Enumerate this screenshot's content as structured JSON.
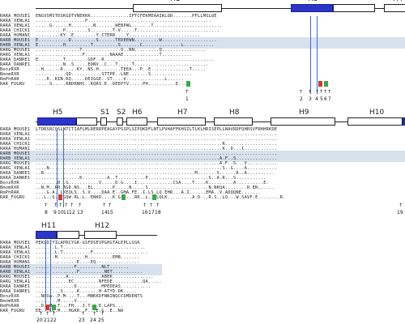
{
  "panels": [
    {
      "helices": [
        "H1",
        "H3",
        "H4"
      ],
      "rows": [
        {
          "name": "RARA_MOUSE1",
          "seq": "ENGVSMSTDSKGDTVNEKKK..............IFTCFEKMEAAIKLQD.......PFLLMSLQE"
        },
        {
          "name": "RARA_XENLA1",
          "seq": "..................P............................................."
        },
        {
          "name": "RARA_XENLA1",
          "seq": ".....G......H........N.......WEBPWL.......T........................."
        },
        {
          "name": "RARA_CHICK1",
          "seq": "..........P........S........T.V.....T.............................."
        },
        {
          "name": "RARA_HUMAN1",
          "seq": ".........KY..E........Y.CTERR....Y.........................."
        },
        {
          "name": "RARB_MOUSE1",
          "seq": "E...........D.........S......TEDEEWN.........W...................."
        },
        {
          "name": "RARB_XENLA1",
          "seq": "E.........H.........T.........S.......C..............L..........."
        },
        {
          "name": "RARG_MOUSE1",
          "seq": "................T..............V..NN.........Q................"
        },
        {
          "name": "RARG_XENLA1",
          "seq": ".................F.........NAAAE.............T..........."
        },
        {
          "name": "RARA_DANRE1",
          "seq": "E.........T........GDF..R........................................"
        },
        {
          "name": "RARA_DANRE1",
          "seq": "..........N..S.....EDNV..C...T.....T..........................."
        },
        {
          "name": "BenzRXR",
          "seq": "..H......R.....KY..NS.H........TEEA...P..E..............T....."
        },
        {
          "name": "BmomRXR",
          "seq": "...........QD...........STTPE..LNE.......S..............."
        },
        {
          "name": "RmPhRAR",
          "seq": "....R..KIN.RQ.....DEIGGE..ST....V..............L......"
        },
        {
          "name": "RAR_FUGRU",
          "seq": ".....S.....RBDRNHC..KQRS.E..DEEPTV.....PH..........E...."
        }
      ],
      "arrow_numbers": [
        "1",
        "2",
        "3",
        "4",
        "5",
        "6",
        "7"
      ]
    },
    {
      "helices": [
        "H5",
        "S1",
        "S2",
        "H6",
        "H7",
        "H8",
        "H9",
        "H10"
      ],
      "rows": [
        {
          "name": "RARA_MOUSE1",
          "seq": "LTDRSRCQSLNTCTIAFLMLRERRPEAGAYPSSPLSIPQKDFLNTLPVHAFFKHSILTLKLHRISEPLLNAVRDFQHRSVFRHHRKDE"
        },
        {
          "name": "RARA_XENLA1",
          "seq": "........................................................................................"
        },
        {
          "name": "RARA_XENLA1",
          "seq": "........................................................................................"
        },
        {
          "name": "RARA_CHICK1",
          "seq": "....................................................................R..................."
        },
        {
          "name": "RARA_HUMAN1",
          "seq": "....................................................................K..D...I............"
        },
        {
          "name": "RARB_MOUSE1",
          "seq": "........................................................................................"
        },
        {
          "name": "RARB_XENLA1",
          "seq": "...................................................................A.F..S..............."
        },
        {
          "name": "RARG_MOUSE1",
          "seq": "...................................................................A.F..S...V..........."
        },
        {
          "name": "RARG_XENLA1",
          "seq": "....N...............................................................S..G....A..........."
        },
        {
          "name": "RARA_DANRE1",
          "seq": "..B.......................................................M.......S......R..A.........."
        },
        {
          "name": "RARA_DANRE1",
          "seq": "................K.........A..T..........P......................S..A.R...S..........."
        },
        {
          "name": "BenzRXR",
          "seq": "........D..G...........V.....D.G....I.............CSA....T....K.........A..........E."
        },
        {
          "name": "BmomRXR",
          "seq": "..N.M..RR.AGD.NS...EL.......P.....N.....S......................N.NKQA........R.ER......"
        },
        {
          "name": "RmPhRAR",
          "seq": "....G.A..LKEQLS..S.V....DAA.E..GMA.FE..I.LS.LQ.EHR...A.I......EMA..V.ADQQNE......."
        },
        {
          "name": "RAR_FUGRU",
          "seq": "...L..S...GQW.RL.L..ENKD....K.G.....RR..L..FLQLK.........A.D...R.S..LQ...W.SAVF.E........R."
        }
      ],
      "arrow_numbers": [
        "8",
        "9",
        "10",
        "11",
        "12",
        "13",
        "14",
        "15",
        "16",
        "17",
        "18",
        "19"
      ]
    },
    {
      "helices": [
        "H11",
        "H12"
      ],
      "rows": [
        {
          "name": "RARA_MOUSE1",
          "seq": "PEKLDIYILAPRCYGK-GSFDSEVPGHGTALEPLLGSK"
        },
        {
          "name": "RARA_XENLA1",
          "seq": ".......L.T.............................."
        },
        {
          "name": "RARA_XENLA1",
          "seq": ".......L.T..........F...................."
        },
        {
          "name": "RARA_CHICK1",
          "seq": ".......M..........H.........EMB......."
        },
        {
          "name": "RARA_HUMAN1",
          "seq": "...............E....EQ.-.............."
        },
        {
          "name": "RARB_MOUSE1",
          "seq": "..............F.........NLT......."
        },
        {
          "name": "RARB_XENLA1",
          "seq": "...............F.........NET..........."
        },
        {
          "name": "RARG_MOUSE1",
          "seq": "...........A............ABEK..............."
        },
        {
          "name": "RARG_XENLA1",
          "seq": "............EC.........NFEDE...........QA....."
        },
        {
          "name": "RARA_DANRE1",
          "seq": "..............D.........MPEDEAS..........."
        },
        {
          "name": "RARA_DANRE1",
          "seq": ".........S.....K.......H.ATYD.DK....."
        },
        {
          "name": "BenzRXR",
          "seq": "..NPOA..P.M....T...MNKKDFNNINQCCDMDENTS"
        },
        {
          "name": "BmomRXR",
          "seq": "........M.....V...."
        },
        {
          "name": "RmPhRAR",
          "seq": "..D..M..T...FH...I.T...E.LAPS..."
        },
        {
          "name": "RAR_FUGRU",
          "seq": "EE...LE.M...HGKR..F...E.G..E..NA"
        }
      ],
      "arrow_numbers": [
        "20",
        "21",
        "22",
        "23",
        "24",
        "25"
      ]
    }
  ]
}
